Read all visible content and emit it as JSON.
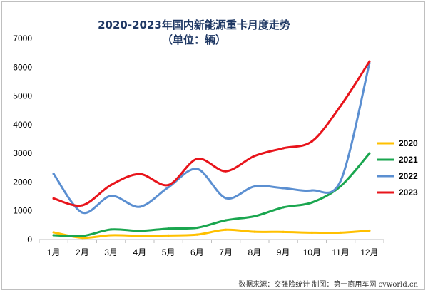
{
  "chart_data": {
    "type": "line",
    "title": "2020-2023年国内新能源重卡月度走势",
    "subtitle": "（单位：辆）",
    "categories": [
      "1月",
      "2月",
      "3月",
      "4月",
      "5月",
      "6月",
      "7月",
      "8月",
      "9月",
      "10月",
      "11月",
      "12月"
    ],
    "ylim": [
      0,
      7000
    ],
    "yticks": [
      0,
      1000,
      2000,
      3000,
      4000,
      5000,
      6000,
      7000
    ],
    "grid": false,
    "legend_position": "right",
    "series": [
      {
        "name": "2020",
        "color": "#ffc000",
        "values": [
          250,
          60,
          150,
          130,
          140,
          170,
          340,
          270,
          265,
          240,
          240,
          310
        ]
      },
      {
        "name": "2021",
        "color": "#1aa64f",
        "values": [
          150,
          120,
          350,
          300,
          380,
          410,
          670,
          810,
          1120,
          1290,
          1860,
          3000
        ]
      },
      {
        "name": "2022",
        "color": "#5b8fd1",
        "values": [
          2290,
          940,
          1520,
          1140,
          1820,
          2460,
          1440,
          1850,
          1790,
          1710,
          2050,
          6140
        ]
      },
      {
        "name": "2023",
        "color": "#e8141b",
        "values": [
          1430,
          1190,
          1900,
          2280,
          1900,
          2810,
          2380,
          2910,
          3180,
          3420,
          4660,
          6200
        ]
      }
    ],
    "footer": "数据来源：交强险统计   制图：第一商用车网 cvworld.cn"
  }
}
